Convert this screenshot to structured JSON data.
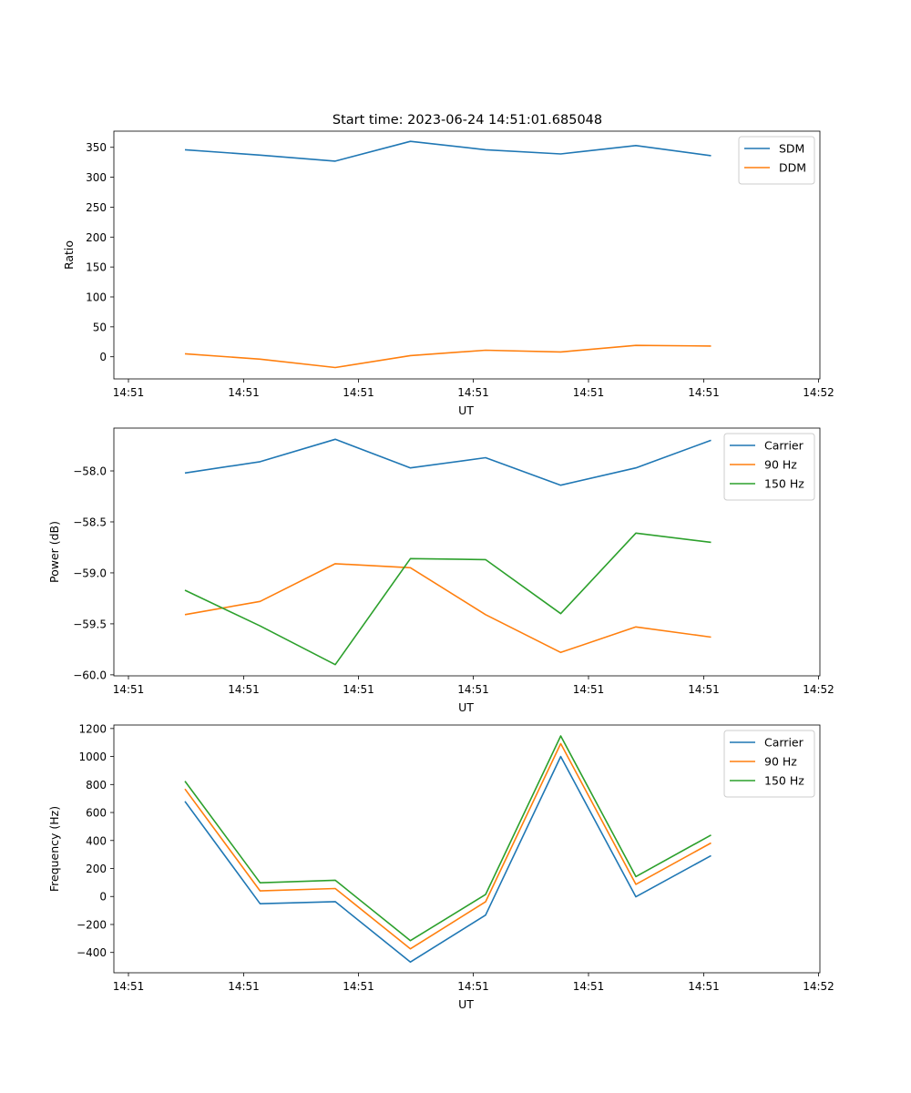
{
  "title": "Start time: 2023-06-24 14:51:01.685048",
  "colors": {
    "blue": "#1f77b4",
    "orange": "#ff7f0e",
    "green": "#2ca02c"
  },
  "chart_data": [
    {
      "type": "line",
      "xlabel": "UT",
      "ylabel": "Ratio",
      "x_tick_labels": [
        "14:51",
        "14:51",
        "14:51",
        "14:51",
        "14:51",
        "14:51",
        "14:51",
        "14:52"
      ],
      "y_ticks": [
        0,
        50,
        100,
        150,
        200,
        250,
        300,
        350
      ],
      "y_tick_labels": [
        "0",
        "50",
        "100",
        "150",
        "200",
        "250",
        "300",
        "350"
      ],
      "ylim": [
        -37,
        377
      ],
      "legend": "top-right",
      "series": [
        {
          "name": "SDM",
          "color": "#1f77b4",
          "values": [
            346,
            337,
            327,
            360,
            346,
            339,
            353,
            336
          ]
        },
        {
          "name": "DDM",
          "color": "#ff7f0e",
          "values": [
            5,
            -4,
            -18,
            2,
            11,
            8,
            19,
            18
          ]
        }
      ]
    },
    {
      "type": "line",
      "xlabel": "UT",
      "ylabel": "Power (dB)",
      "x_tick_labels": [
        "14:51",
        "14:51",
        "14:51",
        "14:51",
        "14:51",
        "14:51",
        "14:51",
        "14:52"
      ],
      "y_ticks": [
        -60.0,
        -59.5,
        -59.0,
        -58.5,
        -58.0
      ],
      "y_tick_labels": [
        "−60.0",
        "−59.5",
        "−59.0",
        "−58.5",
        "−58.0"
      ],
      "ylim": [
        -60.01,
        -57.58
      ],
      "legend": "top-right",
      "series": [
        {
          "name": "Carrier",
          "color": "#1f77b4",
          "values": [
            -58.02,
            -57.91,
            -57.69,
            -57.97,
            -57.87,
            -58.14,
            -57.97,
            -57.7
          ]
        },
        {
          "name": "90 Hz",
          "color": "#ff7f0e",
          "values": [
            -59.41,
            -59.28,
            -58.91,
            -58.95,
            -59.41,
            -59.78,
            -59.53,
            -59.63
          ]
        },
        {
          "name": "150 Hz",
          "color": "#2ca02c",
          "values": [
            -59.17,
            -59.52,
            -59.9,
            -58.86,
            -58.87,
            -59.4,
            -58.61,
            -58.7
          ]
        }
      ]
    },
    {
      "type": "line",
      "xlabel": "UT",
      "ylabel": "Frequency (Hz)",
      "x_tick_labels": [
        "14:51",
        "14:51",
        "14:51",
        "14:51",
        "14:51",
        "14:51",
        "14:51",
        "14:52"
      ],
      "y_ticks": [
        -400,
        -200,
        0,
        200,
        400,
        600,
        800,
        1000,
        1200
      ],
      "y_tick_labels": [
        "−400",
        "−200",
        "0",
        "200",
        "400",
        "600",
        "800",
        "1000",
        "1200"
      ],
      "ylim": [
        -545,
        1225
      ],
      "legend": "top-right",
      "series": [
        {
          "name": "Carrier",
          "color": "#1f77b4",
          "values": [
            680,
            -52,
            -37,
            -468,
            -133,
            1000,
            -2,
            292
          ]
        },
        {
          "name": "90 Hz",
          "color": "#ff7f0e",
          "values": [
            768,
            40,
            57,
            -374,
            -38,
            1092,
            87,
            382
          ]
        },
        {
          "name": "150 Hz",
          "color": "#2ca02c",
          "values": [
            824,
            98,
            116,
            -315,
            14,
            1147,
            142,
            439
          ]
        }
      ]
    }
  ]
}
